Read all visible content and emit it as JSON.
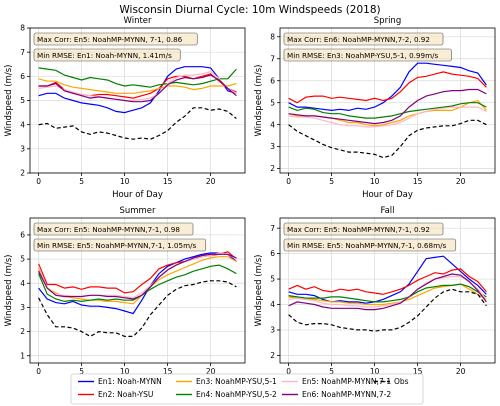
{
  "figure_title": "Wisconsin Diurnal Cycle: 10m Windspeeds (2018)",
  "chart_data": [
    {
      "type": "line",
      "title": "Winter",
      "xlabel": "Hour of Day",
      "ylabel": "Windspeed (m/s)",
      "xlim": [
        -1,
        24
      ],
      "ylim": [
        2,
        8
      ],
      "xticks": [
        "0",
        "5",
        "10",
        "15",
        "20"
      ],
      "yticks": [
        "2",
        "3",
        "4",
        "5",
        "6",
        "7",
        "8"
      ],
      "grid": true,
      "annotations": [
        "Max Corr: En5: NoahMP-MYNN, 7-1, 0.86",
        "Min RMSE: En1: Noah-MYNN, 1.41m/s"
      ],
      "x": [
        0,
        1,
        2,
        3,
        4,
        5,
        6,
        7,
        8,
        9,
        10,
        11,
        12,
        13,
        14,
        15,
        16,
        17,
        18,
        19,
        20,
        21,
        22,
        23
      ],
      "series": [
        {
          "name": "En1: Noah-MYNN",
          "values": [
            5.2,
            5.3,
            5.3,
            5.1,
            5.0,
            4.9,
            4.85,
            4.8,
            4.7,
            4.55,
            4.5,
            4.6,
            4.7,
            4.9,
            5.4,
            6.0,
            6.3,
            6.4,
            6.4,
            6.4,
            6.35,
            5.9,
            5.4,
            5.3
          ]
        },
        {
          "name": "En2: Noah-YSU",
          "values": [
            5.6,
            5.6,
            5.75,
            5.45,
            5.3,
            5.25,
            5.2,
            5.25,
            5.25,
            5.2,
            5.15,
            5.1,
            5.2,
            5.3,
            5.5,
            5.9,
            6.0,
            6.0,
            5.9,
            6.0,
            6.1,
            5.8,
            5.5,
            5.35
          ]
        },
        {
          "name": "En3: NoahMP-YSU,5-1",
          "values": [
            5.9,
            5.8,
            5.8,
            5.65,
            5.55,
            5.5,
            5.45,
            5.4,
            5.35,
            5.3,
            5.3,
            5.3,
            5.35,
            5.4,
            5.5,
            5.6,
            5.6,
            5.55,
            5.45,
            5.5,
            5.6,
            5.6,
            5.6,
            5.7
          ]
        },
        {
          "name": "En4: NoahMP-YSU,5-2",
          "values": [
            6.35,
            6.3,
            6.25,
            6.05,
            5.95,
            5.85,
            5.95,
            5.9,
            5.85,
            5.7,
            5.6,
            5.65,
            5.6,
            5.55,
            5.65,
            5.7,
            5.75,
            5.7,
            5.65,
            5.7,
            5.8,
            5.9,
            5.9,
            6.3
          ]
        },
        {
          "name": "En5: NoahMP-MYNN,7-1",
          "values": [
            5.5,
            5.55,
            5.6,
            5.45,
            5.35,
            5.25,
            5.2,
            5.15,
            5.1,
            5.05,
            5.0,
            5.0,
            5.05,
            5.1,
            5.3,
            5.7,
            5.95,
            6.05,
            6.05,
            6.1,
            6.2,
            5.9,
            5.5,
            5.3
          ]
        },
        {
          "name": "En6: NoahMP-MYNN,7-2",
          "values": [
            5.6,
            5.6,
            5.7,
            5.4,
            5.3,
            5.2,
            5.1,
            5.15,
            5.1,
            5.05,
            5.0,
            4.95,
            4.95,
            5.0,
            5.3,
            5.65,
            5.85,
            5.95,
            5.9,
            5.95,
            6.05,
            5.85,
            5.5,
            5.2
          ]
        },
        {
          "name": "Obs",
          "values": [
            4.0,
            4.05,
            3.85,
            3.9,
            3.95,
            3.7,
            3.6,
            3.7,
            3.65,
            3.55,
            3.45,
            3.4,
            3.45,
            3.4,
            3.55,
            3.75,
            4.1,
            4.35,
            4.7,
            4.7,
            4.6,
            4.65,
            4.55,
            4.25
          ]
        }
      ]
    },
    {
      "type": "line",
      "title": "Spring",
      "xlabel": "Hour of Day",
      "ylabel": "Windspeed (m/s)",
      "xlim": [
        -1,
        24
      ],
      "ylim": [
        1.8,
        8.4
      ],
      "xticks": [
        "0",
        "5",
        "10",
        "15",
        "20"
      ],
      "yticks": [
        "2",
        "3",
        "4",
        "5",
        "6",
        "7",
        "8"
      ],
      "grid": true,
      "annotations": [
        "Max Corr: En6: NoahMP-MYNN,7-2, 0.92",
        "Min RMSE: En3: NoahMP-YSU,5-1, 0.99m/s"
      ],
      "x": [
        0,
        1,
        2,
        3,
        4,
        5,
        6,
        7,
        8,
        9,
        10,
        11,
        12,
        13,
        14,
        15,
        16,
        17,
        18,
        19,
        20,
        21,
        22,
        23
      ],
      "series": [
        {
          "name": "En1: Noah-MYNN",
          "values": [
            5.0,
            4.8,
            4.8,
            4.75,
            4.7,
            4.65,
            4.7,
            4.65,
            4.75,
            4.7,
            4.8,
            5.0,
            5.3,
            5.7,
            6.4,
            6.8,
            6.8,
            6.75,
            6.7,
            6.65,
            6.6,
            6.45,
            6.35,
            5.8
          ]
        },
        {
          "name": "En2: Noah-YSU",
          "values": [
            5.2,
            5.0,
            5.25,
            5.3,
            5.3,
            5.2,
            5.25,
            5.2,
            5.15,
            5.1,
            5.2,
            5.1,
            5.2,
            5.5,
            5.9,
            6.15,
            6.2,
            6.3,
            6.4,
            6.3,
            6.25,
            6.2,
            6.1,
            5.7
          ]
        },
        {
          "name": "En3: NoahMP-YSU,5-1",
          "values": [
            4.5,
            4.4,
            4.4,
            4.4,
            4.35,
            4.3,
            4.2,
            4.1,
            4.1,
            4.0,
            3.95,
            4.0,
            4.1,
            4.2,
            4.4,
            4.5,
            4.6,
            4.65,
            4.65,
            4.65,
            4.8,
            5.0,
            5.1,
            4.65
          ]
        },
        {
          "name": "En4: NoahMP-YSU,5-2",
          "values": [
            4.8,
            4.65,
            4.75,
            4.7,
            4.55,
            4.5,
            4.5,
            4.4,
            4.35,
            4.3,
            4.3,
            4.35,
            4.4,
            4.5,
            4.6,
            4.65,
            4.7,
            4.75,
            4.8,
            4.85,
            4.95,
            5.0,
            5.0,
            4.8
          ]
        },
        {
          "name": "En5: NoahMP-MYNN,7-1",
          "values": [
            4.4,
            4.35,
            4.35,
            4.3,
            4.2,
            4.1,
            4.0,
            3.95,
            3.95,
            3.9,
            3.9,
            3.95,
            4.0,
            4.1,
            4.3,
            4.5,
            4.6,
            4.7,
            4.75,
            4.8,
            4.8,
            4.8,
            4.8,
            4.6
          ]
        },
        {
          "name": "En6: NoahMP-MYNN,7-2",
          "values": [
            4.5,
            4.45,
            4.4,
            4.4,
            4.35,
            4.3,
            4.25,
            4.2,
            4.15,
            4.1,
            4.05,
            4.1,
            4.2,
            4.4,
            4.8,
            5.1,
            5.3,
            5.4,
            5.5,
            5.55,
            5.55,
            5.6,
            5.6,
            5.4
          ]
        },
        {
          "name": "Obs",
          "values": [
            4.0,
            3.7,
            3.5,
            3.3,
            3.1,
            2.95,
            2.85,
            2.75,
            2.75,
            2.7,
            2.65,
            2.5,
            2.6,
            3.0,
            3.5,
            3.75,
            3.85,
            3.9,
            3.95,
            3.95,
            4.05,
            4.2,
            4.2,
            4.0
          ]
        }
      ]
    },
    {
      "type": "line",
      "title": "Summer",
      "xlabel": "Hour of Day",
      "ylabel": "Windspeed (m/s)",
      "xlim": [
        -1,
        24
      ],
      "ylim": [
        0.7,
        6.7
      ],
      "xticks": [
        "0",
        "5",
        "10",
        "15",
        "20"
      ],
      "yticks": [
        "1",
        "2",
        "3",
        "4",
        "5",
        "6"
      ],
      "grid": true,
      "annotations": [
        "Max Corr: En5: NoahMP-MYNN,7-1, 0.98",
        "Min RMSE: En5: NoahMP-MYNN,7-1, 1.05m/s"
      ],
      "x": [
        0,
        1,
        2,
        3,
        4,
        5,
        6,
        7,
        8,
        9,
        10,
        11,
        12,
        13,
        14,
        15,
        16,
        17,
        18,
        19,
        20,
        21,
        22,
        23
      ],
      "series": [
        {
          "name": "En1: Noah-MYNN",
          "values": [
            3.8,
            3.35,
            3.2,
            3.15,
            3.25,
            3.1,
            3.05,
            3.05,
            3.0,
            2.95,
            2.85,
            2.75,
            3.3,
            3.9,
            4.4,
            4.7,
            4.85,
            5.0,
            5.1,
            5.2,
            5.25,
            5.25,
            5.2,
            4.9
          ]
        },
        {
          "name": "En2: Noah-YSU",
          "values": [
            4.8,
            3.95,
            3.95,
            3.8,
            3.85,
            3.75,
            3.85,
            3.85,
            3.8,
            3.8,
            3.6,
            3.65,
            3.95,
            4.2,
            4.6,
            4.75,
            4.85,
            4.9,
            5.0,
            5.1,
            5.15,
            5.2,
            5.3,
            5.0
          ]
        },
        {
          "name": "En3: NoahMP-YSU,5-1",
          "values": [
            4.6,
            3.8,
            3.6,
            3.45,
            3.4,
            3.35,
            3.3,
            3.3,
            3.25,
            3.25,
            3.2,
            3.15,
            3.5,
            3.85,
            4.15,
            4.35,
            4.5,
            4.65,
            4.8,
            4.95,
            5.05,
            5.1,
            5.1,
            4.9
          ]
        },
        {
          "name": "En4: NoahMP-YSU,5-2",
          "values": [
            4.4,
            3.55,
            3.35,
            3.25,
            3.3,
            3.25,
            3.3,
            3.35,
            3.3,
            3.35,
            3.3,
            3.3,
            3.5,
            3.75,
            3.95,
            4.1,
            4.25,
            4.35,
            4.5,
            4.6,
            4.7,
            4.75,
            4.6,
            4.4
          ]
        },
        {
          "name": "En5: NoahMP-MYNN,7-1",
          "values": [
            4.7,
            3.8,
            3.55,
            3.5,
            3.45,
            3.45,
            3.5,
            3.5,
            3.5,
            3.5,
            3.45,
            3.4,
            3.6,
            3.9,
            4.25,
            4.55,
            4.75,
            4.9,
            5.0,
            5.1,
            5.15,
            5.25,
            5.2,
            5.0
          ]
        },
        {
          "name": "En6: NoahMP-MYNN,7-2",
          "values": [
            4.5,
            3.8,
            3.5,
            3.45,
            3.45,
            3.45,
            3.5,
            3.5,
            3.45,
            3.45,
            3.4,
            3.35,
            3.5,
            3.85,
            4.25,
            4.55,
            4.75,
            4.9,
            5.05,
            5.15,
            5.2,
            5.2,
            5.2,
            5.05
          ]
        },
        {
          "name": "Obs",
          "values": [
            3.4,
            2.7,
            2.2,
            2.2,
            2.15,
            2.0,
            1.8,
            2.0,
            1.95,
            1.95,
            1.8,
            1.8,
            2.15,
            2.7,
            3.1,
            3.5,
            3.75,
            3.9,
            3.95,
            4.05,
            4.1,
            4.1,
            4.05,
            3.85
          ]
        }
      ]
    },
    {
      "type": "line",
      "title": "Fall",
      "xlabel": "Hour of Day",
      "ylabel": "Windspeed (m/s)",
      "xlim": [
        -1,
        24
      ],
      "ylim": [
        1.7,
        7.4
      ],
      "xticks": [
        "0",
        "5",
        "10",
        "15",
        "20"
      ],
      "yticks": [
        "2",
        "3",
        "4",
        "5",
        "6",
        "7"
      ],
      "grid": true,
      "annotations": [
        "Max Corr: En5: NoahMP-MYNN,7-1, 0.92",
        "Min RMSE: En5: NoahMP-MYNN,7-1, 0.68m/s"
      ],
      "x": [
        0,
        1,
        2,
        3,
        4,
        5,
        6,
        7,
        8,
        9,
        10,
        11,
        12,
        13,
        14,
        15,
        16,
        17,
        18,
        19,
        20,
        21,
        22,
        23
      ],
      "series": [
        {
          "name": "En1: Noah-MYNN",
          "values": [
            4.5,
            4.4,
            4.4,
            4.35,
            4.2,
            4.1,
            4.15,
            4.1,
            4.1,
            4.05,
            4.1,
            4.2,
            4.35,
            4.5,
            4.8,
            5.3,
            5.8,
            5.85,
            5.9,
            5.6,
            5.3,
            5.0,
            4.75,
            4.4
          ]
        },
        {
          "name": "En2: Noah-YSU",
          "values": [
            4.6,
            4.75,
            4.6,
            4.7,
            4.55,
            4.5,
            4.6,
            4.55,
            4.6,
            4.5,
            4.45,
            4.4,
            4.5,
            4.6,
            4.75,
            4.95,
            5.1,
            5.25,
            5.2,
            5.35,
            5.4,
            5.1,
            4.9,
            4.5
          ]
        },
        {
          "name": "En3: NoahMP-YSU,5-1",
          "values": [
            4.3,
            4.25,
            4.2,
            4.2,
            4.15,
            4.1,
            4.1,
            4.05,
            4.05,
            4.0,
            4.0,
            4.0,
            4.05,
            4.1,
            4.2,
            4.35,
            4.5,
            4.65,
            4.7,
            4.75,
            4.8,
            4.6,
            4.4,
            4.2
          ]
        },
        {
          "name": "En4: NoahMP-YSU,5-2",
          "values": [
            4.35,
            4.3,
            4.25,
            4.25,
            4.25,
            4.3,
            4.3,
            4.25,
            4.2,
            4.15,
            4.1,
            4.1,
            4.15,
            4.2,
            4.3,
            4.5,
            4.65,
            4.7,
            4.75,
            4.75,
            4.8,
            4.7,
            4.5,
            4.3
          ]
        },
        {
          "name": "En5: NoahMP-MYNN,7-1",
          "values": [
            4.2,
            4.25,
            4.2,
            4.15,
            4.05,
            4.0,
            4.0,
            3.95,
            3.95,
            3.9,
            3.9,
            3.95,
            4.0,
            4.1,
            4.3,
            4.6,
            4.85,
            5.0,
            5.05,
            5.1,
            5.1,
            4.9,
            4.6,
            4.2
          ]
        },
        {
          "name": "En6: NoahMP-MYNN,7-2",
          "values": [
            3.95,
            4.1,
            4.05,
            4.0,
            3.9,
            3.85,
            3.85,
            3.85,
            3.85,
            3.8,
            3.8,
            3.85,
            3.95,
            4.05,
            4.3,
            4.6,
            4.8,
            5.0,
            5.1,
            5.2,
            5.15,
            4.9,
            4.55,
            4.1
          ]
        },
        {
          "name": "Obs",
          "values": [
            3.6,
            3.3,
            3.2,
            3.25,
            3.25,
            3.2,
            3.1,
            3.05,
            3.0,
            3.0,
            2.95,
            3.0,
            3.0,
            3.1,
            3.3,
            3.55,
            3.9,
            4.25,
            4.5,
            4.6,
            4.5,
            4.5,
            4.4,
            3.95
          ]
        }
      ]
    }
  ],
  "series_colors": [
    "#0000ff",
    "#ff0000",
    "#ffa500",
    "#008000",
    "#ffb6c1",
    "#800080",
    "#000000"
  ],
  "legend": {
    "entries": [
      "En1: Noah-MYNN",
      "En2: Noah-YSU",
      "En3: NoahMP-YSU,5-1",
      "En4: NoahMP-YSU,5-2",
      "En5: NoahMP-MYNN,7-1",
      "En6: NoahMP-MYNN,7-2",
      "Obs"
    ],
    "placement": "bottom-center"
  }
}
